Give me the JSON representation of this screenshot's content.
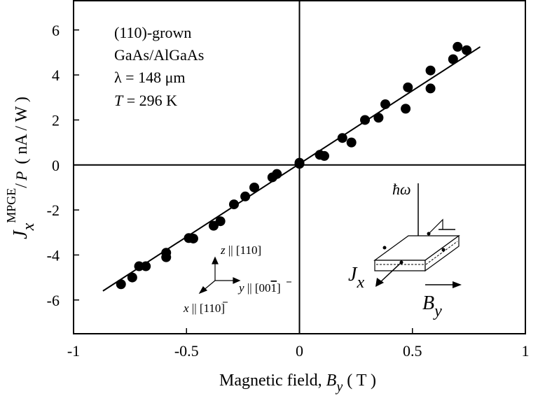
{
  "chart_data": {
    "type": "scatter",
    "xlabel": {
      "prefix": "Magnetic field, ",
      "var": "B",
      "sub": "y",
      "unit": "( T )"
    },
    "ylabel": {
      "var": "J",
      "sub": "x",
      "sup": "MPGE",
      "slash": "/",
      "den": "P",
      "unit": "( nA / W )"
    },
    "xlim": [
      -1,
      1
    ],
    "ylim": [
      -7.5,
      7.3
    ],
    "x_ticks": [
      -1,
      -0.5,
      0,
      0.5,
      1
    ],
    "x_tick_labels": [
      "-1",
      "-0.5",
      "0",
      "0.5",
      "1"
    ],
    "y_ticks": [
      -6,
      -4,
      -2,
      0,
      2,
      4,
      6
    ],
    "y_tick_labels": [
      "-6",
      "-4",
      "-2",
      "0",
      "2",
      "4",
      "6"
    ],
    "grid": false,
    "zero_lines": true,
    "points": [
      {
        "x": -0.79,
        "y": -5.3
      },
      {
        "x": -0.74,
        "y": -5.0
      },
      {
        "x": -0.71,
        "y": -4.5
      },
      {
        "x": -0.68,
        "y": -4.5
      },
      {
        "x": -0.59,
        "y": -3.9
      },
      {
        "x": -0.59,
        "y": -4.1
      },
      {
        "x": -0.49,
        "y": -3.25
      },
      {
        "x": -0.47,
        "y": -3.27
      },
      {
        "x": -0.38,
        "y": -2.7
      },
      {
        "x": -0.35,
        "y": -2.5
      },
      {
        "x": -0.29,
        "y": -1.75
      },
      {
        "x": -0.24,
        "y": -1.4
      },
      {
        "x": -0.2,
        "y": -1.0
      },
      {
        "x": -0.12,
        "y": -0.55
      },
      {
        "x": -0.1,
        "y": -0.4
      },
      {
        "x": 0.0,
        "y": 0.05
      },
      {
        "x": 0.0,
        "y": 0.1
      },
      {
        "x": 0.09,
        "y": 0.45
      },
      {
        "x": 0.11,
        "y": 0.4
      },
      {
        "x": 0.19,
        "y": 1.2
      },
      {
        "x": 0.23,
        "y": 1.0
      },
      {
        "x": 0.29,
        "y": 2.0
      },
      {
        "x": 0.35,
        "y": 2.1
      },
      {
        "x": 0.38,
        "y": 2.7
      },
      {
        "x": 0.47,
        "y": 2.5
      },
      {
        "x": 0.48,
        "y": 3.45
      },
      {
        "x": 0.58,
        "y": 4.2
      },
      {
        "x": 0.58,
        "y": 3.4
      },
      {
        "x": 0.68,
        "y": 4.7
      },
      {
        "x": 0.7,
        "y": 5.25
      },
      {
        "x": 0.74,
        "y": 5.1
      }
    ],
    "fit_line": {
      "x": [
        -0.87,
        0.8
      ],
      "y": [
        -5.6,
        5.25
      ]
    },
    "annotations": {
      "sample": "(110)-grown",
      "material": "GaAs/AlGaAs",
      "wavelength": "λ = 148 μm",
      "temperature_var": "T",
      "temperature_rest": " = 296 K"
    },
    "coord_labels": {
      "z_var": "z",
      "z_rest": " || [110]",
      "y_var": "y",
      "y_rest": " || [00",
      "y_bar": "1",
      "y_end": "]",
      "x_var": "x",
      "x_rest": " || [1",
      "x_bar": "1",
      "x_end": "0]"
    },
    "inset": {
      "hbar_omega": "ħω",
      "j_var": "J",
      "j_sub": "x",
      "b_var": "B",
      "b_sub": "y"
    }
  }
}
